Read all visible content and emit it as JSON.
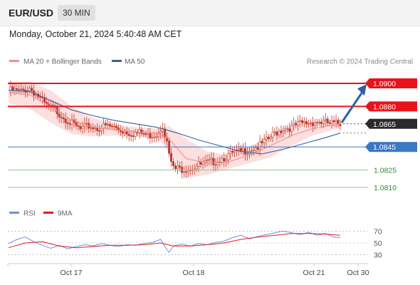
{
  "header": {
    "symbol": "EUR/USD",
    "timeframe": "30 MIN",
    "datetime": "Monday, October 21, 2024 5:40:48 AM CET"
  },
  "legend": {
    "ma20_label": "MA 20 + Bollinger Bands",
    "ma50_label": "MA 50",
    "copyright": "Research © 2024 Trading Central"
  },
  "rsi_legend": {
    "rsi_label": "RSI",
    "ma_label": "9MA"
  },
  "colors": {
    "resistance": "#e8141c",
    "support": "#3a78c2",
    "target_line": "#8fc78f",
    "target_text": "#2e8b2e",
    "candle": "#c0392b",
    "ma20": "#f08f8f",
    "ma50": "#3a5fa0",
    "bollinger_fill": "#fbd9d9",
    "rsi": "#6f8fe0",
    "rsi_ma": "#e01c1c",
    "arrow": "#2f5fa8",
    "current_price_bg": "#2b2b2b"
  },
  "chart_data": [
    {
      "type": "candlestick",
      "title": "EUR/USD 30 MIN",
      "x_ticks": [
        "Oct 17",
        "Oct 18",
        "Oct 21",
        "Oct 30"
      ],
      "ylim": [
        1.0802,
        1.0908
      ],
      "price_levels": [
        {
          "value": "1.0900",
          "kind": "resistance"
        },
        {
          "value": "1.0880",
          "kind": "resistance"
        },
        {
          "value": "1.0865",
          "kind": "current"
        },
        {
          "value": "1.0845",
          "kind": "support"
        },
        {
          "value": "1.0825",
          "kind": "target"
        },
        {
          "value": "1.0810",
          "kind": "target"
        }
      ],
      "series": [
        {
          "name": "MA 20 + Bollinger Bands"
        },
        {
          "name": "MA 50"
        }
      ],
      "arrow": {
        "from": 1.0866,
        "to": 1.0898,
        "direction": "up"
      },
      "close_path": [
        [
          0,
          1.0894
        ],
        [
          6,
          1.0893
        ],
        [
          10,
          1.0896
        ],
        [
          14,
          1.0889
        ],
        [
          18,
          1.088
        ],
        [
          22,
          1.0877
        ],
        [
          26,
          1.0871
        ],
        [
          30,
          1.0865
        ],
        [
          34,
          1.086
        ],
        [
          38,
          1.0863
        ],
        [
          42,
          1.0861
        ],
        [
          46,
          1.0863
        ],
        [
          50,
          1.0862
        ],
        [
          54,
          1.0859
        ],
        [
          58,
          1.0857
        ],
        [
          62,
          1.0857
        ],
        [
          66,
          1.0855
        ],
        [
          70,
          1.0856
        ],
        [
          73,
          1.0864
        ],
        [
          75,
          1.0848
        ],
        [
          77,
          1.083
        ],
        [
          79,
          1.0826
        ],
        [
          82,
          1.0826
        ],
        [
          86,
          1.0827
        ],
        [
          90,
          1.0829
        ],
        [
          94,
          1.0831
        ],
        [
          98,
          1.0833
        ],
        [
          102,
          1.0836
        ],
        [
          106,
          1.0839
        ],
        [
          110,
          1.0841
        ],
        [
          114,
          1.0843
        ],
        [
          118,
          1.0845
        ],
        [
          122,
          1.085
        ],
        [
          126,
          1.0857
        ],
        [
          130,
          1.0861
        ],
        [
          134,
          1.0862
        ],
        [
          138,
          1.0865
        ],
        [
          142,
          1.0866
        ],
        [
          146,
          1.0867
        ],
        [
          150,
          1.0866
        ],
        [
          154,
          1.0865
        ],
        [
          157,
          1.0865
        ]
      ],
      "ma20_path": [
        [
          0,
          1.0892
        ],
        [
          10,
          1.089
        ],
        [
          20,
          1.088
        ],
        [
          30,
          1.0868
        ],
        [
          40,
          1.0862
        ],
        [
          50,
          1.086
        ],
        [
          60,
          1.0858
        ],
        [
          70,
          1.0857
        ],
        [
          76,
          1.0852
        ],
        [
          84,
          1.0835
        ],
        [
          94,
          1.0831
        ],
        [
          104,
          1.0832
        ],
        [
          114,
          1.0838
        ],
        [
          124,
          1.0846
        ],
        [
          134,
          1.0855
        ],
        [
          144,
          1.0861
        ],
        [
          154,
          1.0864
        ],
        [
          157,
          1.0865
        ]
      ],
      "band_width": [
        [
          0,
          0.0009
        ],
        [
          10,
          0.0012
        ],
        [
          20,
          0.0014
        ],
        [
          30,
          0.0012
        ],
        [
          40,
          0.0008
        ],
        [
          50,
          0.0005
        ],
        [
          60,
          0.0004
        ],
        [
          70,
          0.0004
        ],
        [
          76,
          0.0011
        ],
        [
          84,
          0.0017
        ],
        [
          94,
          0.001
        ],
        [
          104,
          0.0006
        ],
        [
          114,
          0.0007
        ],
        [
          124,
          0.001
        ],
        [
          134,
          0.0009
        ],
        [
          144,
          0.0006
        ],
        [
          154,
          0.0004
        ],
        [
          157,
          0.0004
        ]
      ],
      "ma50_path": [
        [
          0,
          1.0894
        ],
        [
          10,
          1.0893
        ],
        [
          20,
          1.0885
        ],
        [
          30,
          1.0877
        ],
        [
          40,
          1.0872
        ],
        [
          50,
          1.0868
        ],
        [
          60,
          1.0865
        ],
        [
          70,
          1.0862
        ],
        [
          80,
          1.0857
        ],
        [
          90,
          1.0851
        ],
        [
          100,
          1.0846
        ],
        [
          110,
          1.0841
        ],
        [
          120,
          1.0839
        ],
        [
          130,
          1.0843
        ],
        [
          140,
          1.0848
        ],
        [
          150,
          1.0853
        ],
        [
          157,
          1.0857
        ]
      ]
    },
    {
      "type": "line",
      "title": "RSI",
      "y_ticks": [
        "70",
        "50",
        "30"
      ],
      "ylim": [
        20,
        80
      ],
      "series": [
        {
          "name": "RSI"
        },
        {
          "name": "9MA"
        }
      ],
      "rsi_path": [
        [
          0,
          49
        ],
        [
          4,
          56
        ],
        [
          8,
          60
        ],
        [
          12,
          52
        ],
        [
          16,
          46
        ],
        [
          20,
          41
        ],
        [
          24,
          46
        ],
        [
          28,
          40
        ],
        [
          32,
          44
        ],
        [
          36,
          47
        ],
        [
          40,
          45
        ],
        [
          44,
          49
        ],
        [
          48,
          46
        ],
        [
          52,
          44
        ],
        [
          56,
          47
        ],
        [
          60,
          46
        ],
        [
          64,
          49
        ],
        [
          68,
          51
        ],
        [
          72,
          56
        ],
        [
          74,
          44
        ],
        [
          76,
          34
        ],
        [
          78,
          45
        ],
        [
          82,
          48
        ],
        [
          86,
          45
        ],
        [
          90,
          49
        ],
        [
          94,
          47
        ],
        [
          98,
          51
        ],
        [
          102,
          53
        ],
        [
          106,
          59
        ],
        [
          110,
          63
        ],
        [
          114,
          57
        ],
        [
          118,
          61
        ],
        [
          122,
          64
        ],
        [
          126,
          67
        ],
        [
          130,
          70
        ],
        [
          134,
          67
        ],
        [
          138,
          64
        ],
        [
          142,
          68
        ],
        [
          146,
          63
        ],
        [
          150,
          66
        ],
        [
          154,
          60
        ],
        [
          157,
          59
        ]
      ],
      "ma_path": [
        [
          0,
          42
        ],
        [
          8,
          50
        ],
        [
          16,
          52
        ],
        [
          24,
          45
        ],
        [
          32,
          42
        ],
        [
          40,
          44
        ],
        [
          48,
          46
        ],
        [
          56,
          46
        ],
        [
          64,
          47
        ],
        [
          72,
          50
        ],
        [
          78,
          45
        ],
        [
          86,
          45
        ],
        [
          94,
          47
        ],
        [
          102,
          50
        ],
        [
          110,
          56
        ],
        [
          118,
          60
        ],
        [
          126,
          63
        ],
        [
          134,
          66
        ],
        [
          142,
          66
        ],
        [
          150,
          65
        ],
        [
          157,
          63
        ]
      ]
    }
  ]
}
